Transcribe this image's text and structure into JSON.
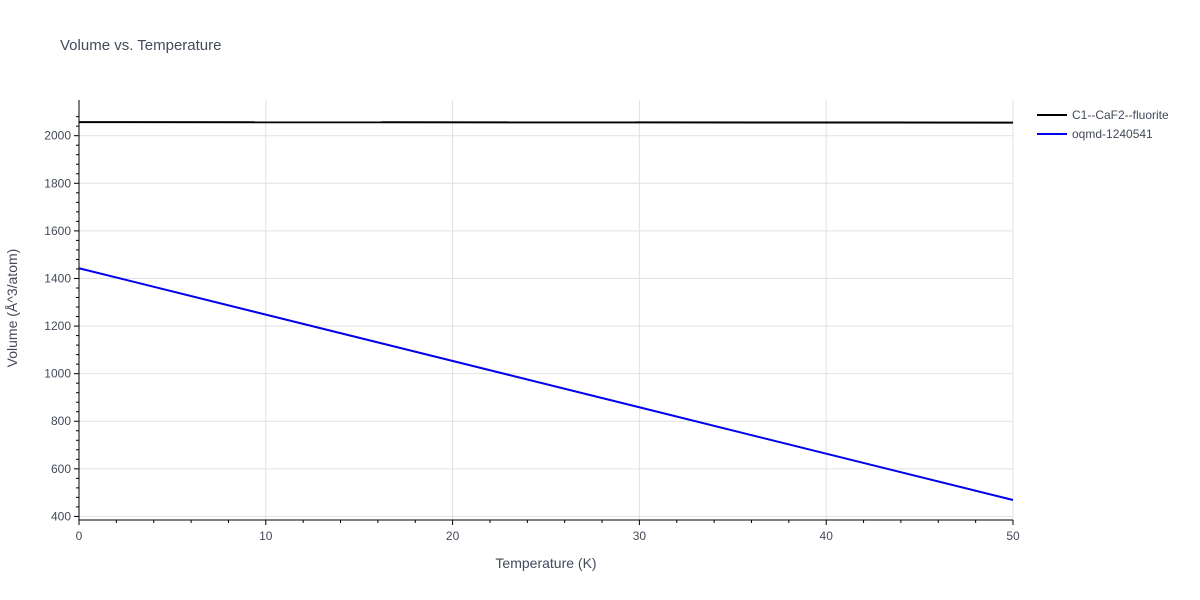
{
  "chart_data": {
    "type": "line",
    "title": "Volume vs. Temperature",
    "xlabel": "Temperature (K)",
    "ylabel": "Volume (Å^3/atom)",
    "xlim": [
      0,
      50
    ],
    "ylim": [
      385,
      2150
    ],
    "xticks": [
      0,
      10,
      20,
      30,
      40,
      50
    ],
    "yticks": [
      400,
      600,
      800,
      1000,
      1200,
      1400,
      1600,
      1800,
      2000
    ],
    "grid": true,
    "legend_position": "top-right outside",
    "series": [
      {
        "name": "C1--CaF2--fluorite",
        "color": "#000000",
        "x": [
          0,
          50
        ],
        "y": [
          2057,
          2055
        ]
      },
      {
        "name": "oqmd-1240541",
        "color": "#0000ee",
        "x": [
          0,
          50
        ],
        "y": [
          1443,
          469
        ]
      }
    ]
  }
}
